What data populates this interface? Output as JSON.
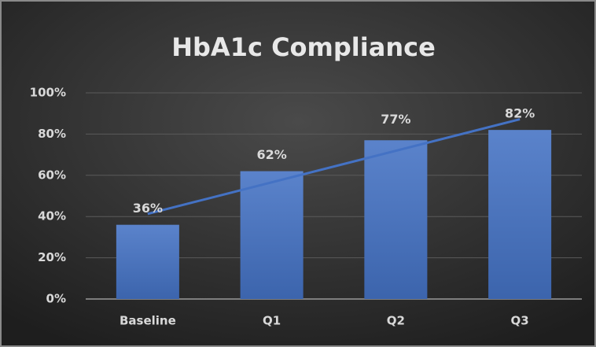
{
  "chart_data": {
    "type": "bar",
    "title": "HbA1c Compliance",
    "categories": [
      "Baseline",
      "Q1",
      "Q2",
      "Q3"
    ],
    "values": [
      36,
      62,
      77,
      82
    ],
    "value_labels": [
      "36%",
      "62%",
      "77%",
      "82%"
    ],
    "color": "#4472c4",
    "ylim": [
      0,
      100
    ],
    "yticks": [
      {
        "value": 0,
        "label": "0%"
      },
      {
        "value": 20,
        "label": "20%"
      },
      {
        "value": 40,
        "label": "40%"
      },
      {
        "value": 60,
        "label": "60%"
      },
      {
        "value": 80,
        "label": "80%"
      },
      {
        "value": 100,
        "label": "100%"
      }
    ],
    "grid": true,
    "trendline": "linear"
  }
}
